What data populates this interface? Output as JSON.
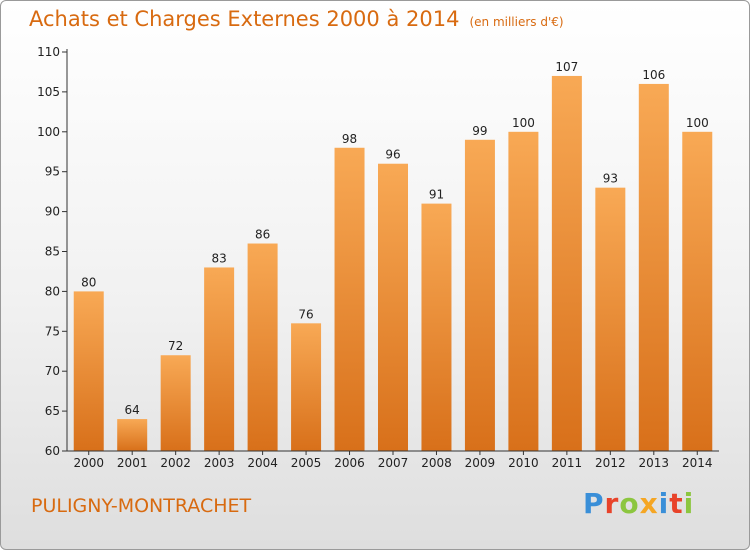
{
  "header": {
    "title": "Achats et Charges Externes 2000 à 2014",
    "unit": "(en milliers d'€)"
  },
  "footer": {
    "commune": "PULIGNY-MONTRACHET",
    "brand": "Proxiti",
    "brand_colors": [
      "#3a8fd8",
      "#e8432a",
      "#8cc63f",
      "#f5a623",
      "#3a8fd8",
      "#e8432a",
      "#8cc63f"
    ]
  },
  "colors": {
    "title": "#d86a10",
    "bar_top": "#f8a955",
    "bar_bottom": "#d8701a"
  },
  "chart_data": {
    "type": "bar",
    "title": "Achats et Charges Externes 2000 à 2014",
    "subtitle": "(en milliers d'€)",
    "categories": [
      "2000",
      "2001",
      "2002",
      "2003",
      "2004",
      "2005",
      "2006",
      "2007",
      "2008",
      "2009",
      "2010",
      "2011",
      "2012",
      "2013",
      "2014"
    ],
    "values": [
      80,
      64,
      72,
      83,
      86,
      76,
      98,
      96,
      91,
      99,
      100,
      107,
      93,
      106,
      100
    ],
    "ylim": [
      60,
      110
    ],
    "yticks": [
      60,
      65,
      70,
      75,
      80,
      85,
      90,
      95,
      100,
      105,
      110
    ],
    "grid": false,
    "legend": "none"
  }
}
